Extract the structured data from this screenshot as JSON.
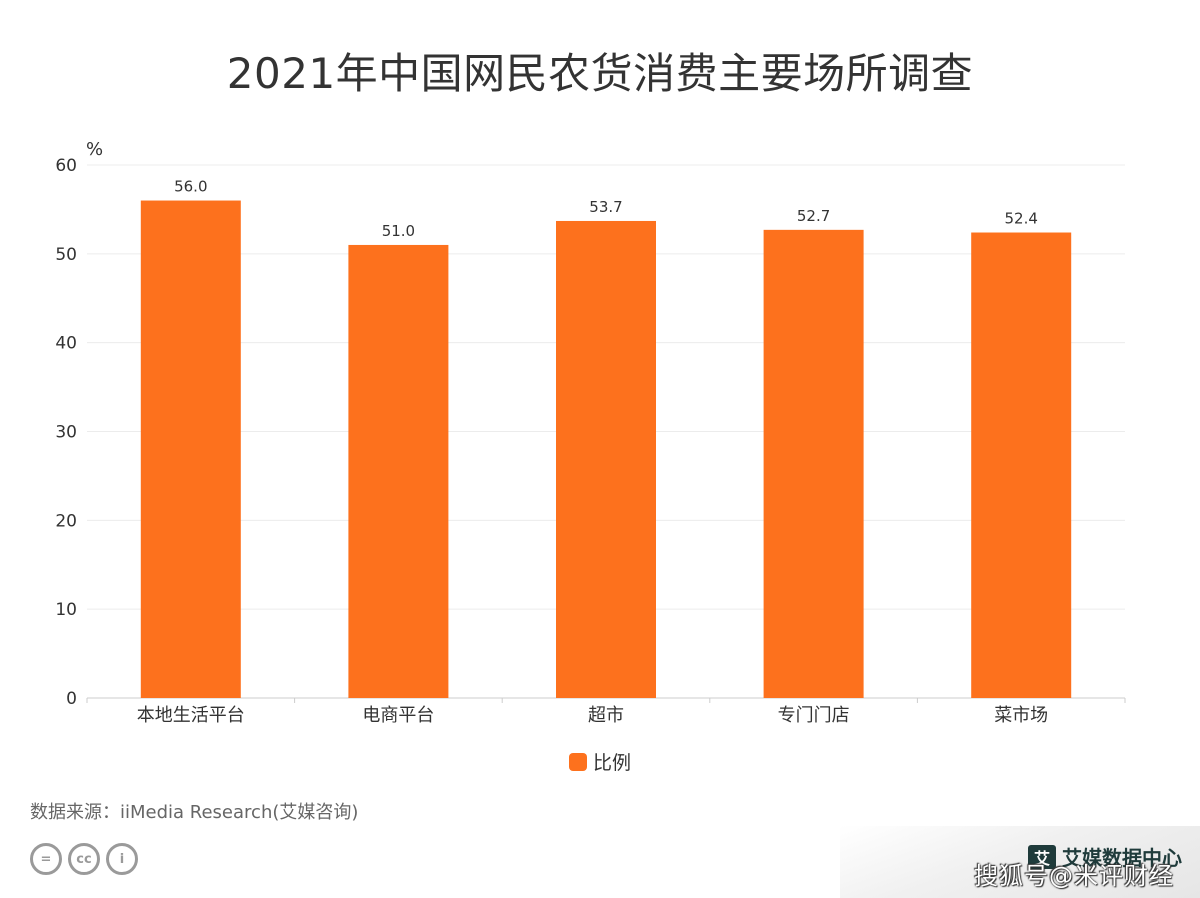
{
  "chart_data": {
    "type": "bar",
    "title": "2021年中国网民农货消费主要场所调查",
    "ylabel": "%",
    "xlabel": "",
    "categories": [
      "本地生活平台",
      "电商平台",
      "超市",
      "专门门店",
      "菜市场"
    ],
    "series": [
      {
        "name": "比例",
        "values": [
          56.0,
          51.0,
          53.7,
          52.7,
          52.4
        ],
        "color": "#fd711d"
      }
    ],
    "data_labels": [
      "56.0",
      "51.0",
      "53.7",
      "52.7",
      "52.4"
    ],
    "ylim": [
      0,
      60
    ],
    "yticks": [
      0,
      10,
      20,
      30,
      40,
      50,
      60
    ],
    "grid": true,
    "legend_position": "bottom-center"
  },
  "source_text": "数据来源：iiMedia Research(艾媒咨询)",
  "license_icons": [
    "equals-icon",
    "cc-icon",
    "person-icon"
  ],
  "license_labels": [
    "=",
    "cc",
    "i"
  ],
  "brand_text": "艾媒数据中心",
  "brand_mark": "艾",
  "watermark_text": "搜狐号@米评财经"
}
